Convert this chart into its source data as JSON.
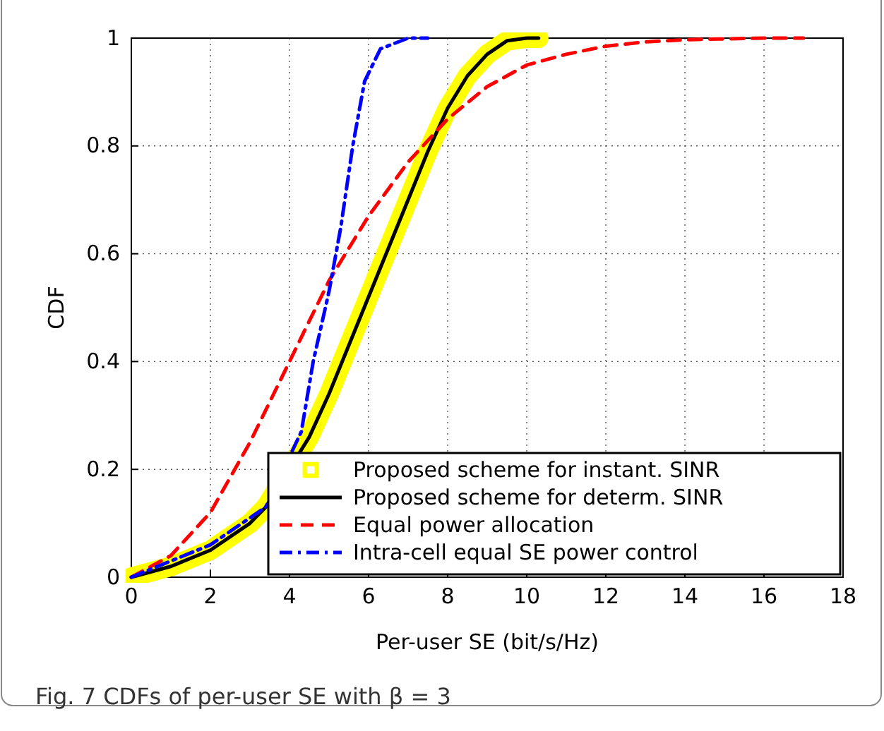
{
  "chart_data": {
    "type": "line",
    "title": "Fig. 7 CDFs of per-user SE with β = 3",
    "xlabel": "Per-user SE (bit/s/Hz)",
    "ylabel": "CDF",
    "xlim": [
      0,
      18
    ],
    "xticks": [
      0,
      2,
      4,
      6,
      8,
      10,
      12,
      14,
      16,
      18
    ],
    "ylim": [
      0,
      1
    ],
    "yticks": [
      0,
      0.2,
      0.4,
      0.6,
      0.8,
      1
    ],
    "grid": true,
    "legend": "bottom right",
    "series": [
      {
        "name": "Proposed scheme for instant. SINR",
        "color": "#ffff00",
        "marker": "square",
        "line_style": "solid",
        "x": [
          0,
          1,
          2,
          3,
          3.4,
          4,
          4.5,
          5,
          5.5,
          6,
          6.5,
          7,
          7.5,
          8,
          8.5,
          9,
          9.5,
          10,
          10.3
        ],
        "values": [
          0,
          0.02,
          0.05,
          0.1,
          0.13,
          null,
          0.26,
          0.34,
          0.43,
          0.52,
          0.61,
          0.7,
          0.79,
          0.87,
          0.93,
          0.97,
          0.995,
          1,
          1
        ]
      },
      {
        "name": "Proposed scheme for determ. SINR",
        "color": "#000000",
        "marker": "none",
        "line_style": "solid",
        "x": [
          0,
          1,
          2,
          3,
          3.4,
          4,
          4.5,
          5,
          5.5,
          6,
          6.5,
          7,
          7.5,
          8,
          8.5,
          9,
          9.5,
          10,
          10.3
        ],
        "values": [
          0,
          0.02,
          0.05,
          0.1,
          0.13,
          null,
          0.26,
          0.34,
          0.43,
          0.52,
          0.61,
          0.7,
          0.79,
          0.87,
          0.93,
          0.97,
          0.995,
          1,
          1
        ]
      },
      {
        "name": "Equal power allocation",
        "color": "#ff0000",
        "marker": "none",
        "line_style": "dashed",
        "x": [
          0,
          1,
          2,
          3,
          4,
          5,
          6,
          7,
          8,
          9,
          10,
          11,
          12,
          13,
          14,
          16,
          17
        ],
        "values": [
          0,
          0.04,
          0.12,
          0.25,
          0.4,
          0.55,
          0.67,
          0.77,
          0.85,
          0.91,
          0.95,
          0.97,
          0.985,
          0.993,
          0.997,
          1,
          1
        ]
      },
      {
        "name": "Intra-cell equal SE power control",
        "color": "#0000ff",
        "marker": "none",
        "line_style": "dashdot",
        "x": [
          0,
          1,
          2,
          3,
          3.4,
          4,
          4.3,
          4.6,
          5,
          5.3,
          5.6,
          5.9,
          6.3,
          7,
          7.5
        ],
        "values": [
          0,
          0.03,
          0.06,
          0.11,
          0.13,
          null,
          0.27,
          0.4,
          0.53,
          0.65,
          0.8,
          0.92,
          0.98,
          1,
          1
        ]
      }
    ]
  }
}
